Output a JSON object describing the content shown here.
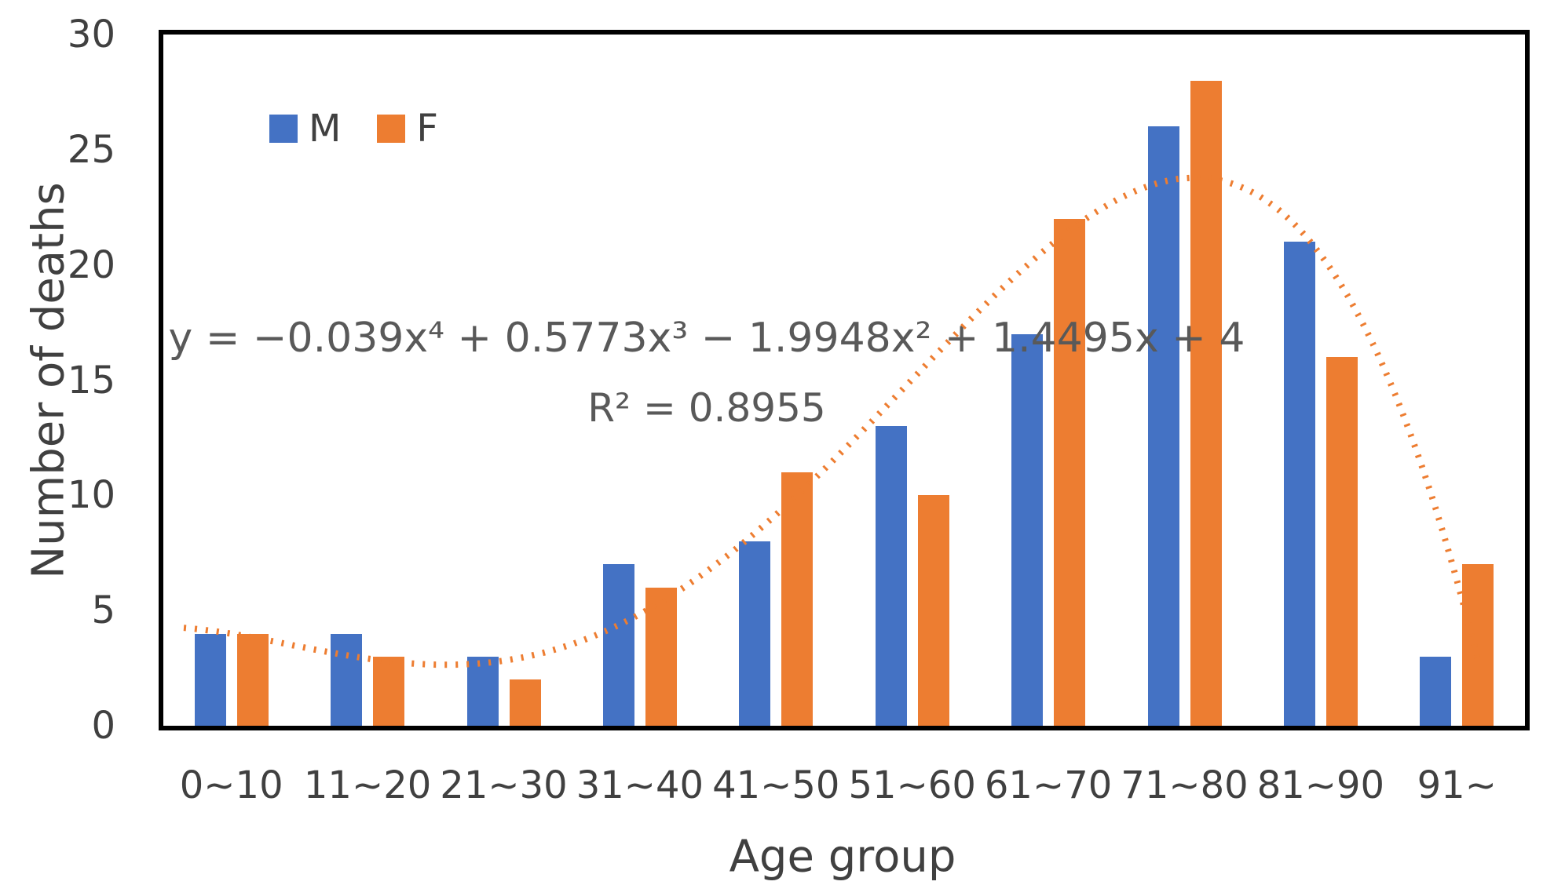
{
  "chart_data": {
    "type": "bar",
    "title": "",
    "categories": [
      "0~10",
      "11~20",
      "21~30",
      "31~40",
      "41~50",
      "51~60",
      "61~70",
      "71~80",
      "81~90",
      "91~"
    ],
    "series": [
      {
        "name": "M",
        "color": "#4472C4",
        "values": [
          4,
          4,
          3,
          7,
          8,
          13,
          17,
          26,
          21,
          3
        ]
      },
      {
        "name": "F",
        "color": "#ED7D31",
        "values": [
          4,
          3,
          2,
          6,
          11,
          10,
          22,
          28,
          16,
          7
        ]
      }
    ],
    "xlabel": "Age group",
    "ylabel": "Number of deaths",
    "ylim": [
      0,
      30
    ],
    "yticks": [
      0,
      5,
      10,
      15,
      20,
      25,
      30
    ],
    "grid": false,
    "legend_position": "top-left-inside",
    "trendline": {
      "type": "polynomial",
      "degree": 4,
      "applies_to": "F",
      "coefficients": [
        -0.039,
        0.5773,
        -1.9948,
        1.4495,
        4
      ],
      "equation": "y = −0.039x⁴ + 0.5773x³ − 1.9948x² + 1.4495x + 4",
      "r_squared_label": "R² = 0.8955",
      "r_squared": 0.8955,
      "color": "#ED7D31",
      "style": "dotted"
    }
  },
  "colors": {
    "axis_text": "#404040",
    "equation_text": "#595959",
    "frame": "#000000",
    "background": "#ffffff"
  }
}
